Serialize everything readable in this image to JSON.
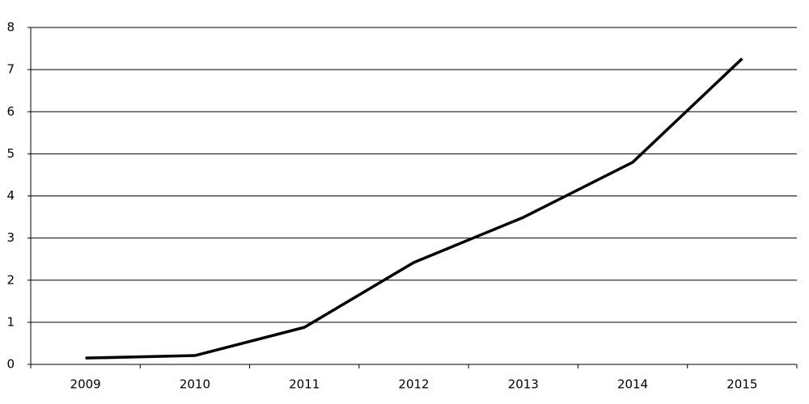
{
  "chart_data": {
    "type": "line",
    "categories": [
      "2009",
      "2010",
      "2011",
      "2012",
      "2013",
      "2014",
      "2015"
    ],
    "values": [
      0.15,
      0.21,
      0.88,
      2.42,
      3.49,
      4.8,
      7.26
    ],
    "color": "#000000",
    "ylim": [
      0,
      8
    ],
    "yticks": [
      0,
      1,
      2,
      3,
      4,
      5,
      6,
      7,
      8
    ],
    "grid": true
  }
}
